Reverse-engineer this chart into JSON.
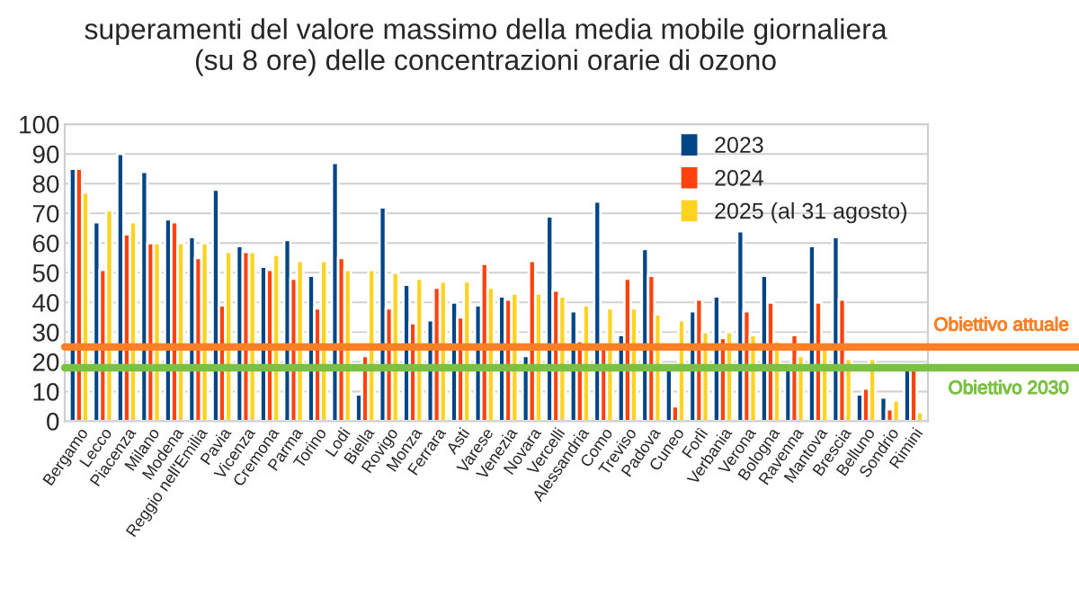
{
  "chart_data": {
    "type": "bar",
    "title": "superamenti del valore massimo della media mobile giornaliera\n(su 8 ore) delle concentrazioni orarie di ozono",
    "categories": [
      "Bergamo",
      "Lecco",
      "Piacenza",
      "Milano",
      "Modena",
      "Reggio nell'Emilia",
      "Pavia",
      "Vicenza",
      "Cremona",
      "Parma",
      "Torino",
      "Lodi",
      "Biella",
      "Rovigo",
      "Monza",
      "Ferrara",
      "Asti",
      "Varese",
      "Venezia",
      "Novara",
      "Vercelli",
      "Alessandria",
      "Como",
      "Treviso",
      "Padova",
      "Cuneo",
      "Forlì",
      "Verbania",
      "Verona",
      "Bologna",
      "Ravenna",
      "Mantova",
      "Brescia",
      "Belluno",
      "Sondrio",
      "Rimini"
    ],
    "series": [
      {
        "name": "2023",
        "color": "#004586",
        "values": [
          85,
          67,
          90,
          84,
          68,
          62,
          78,
          59,
          52,
          61,
          49,
          87,
          9,
          72,
          46,
          34,
          40,
          39,
          42,
          22,
          69,
          37,
          74,
          29,
          58,
          18,
          37,
          42,
          64,
          49,
          18,
          59,
          62,
          9,
          8,
          18
        ]
      },
      {
        "name": "2024",
        "color": "#ff420e",
        "values": [
          85,
          51,
          63,
          60,
          67,
          55,
          39,
          57,
          51,
          48,
          38,
          55,
          22,
          38,
          33,
          45,
          35,
          53,
          41,
          54,
          44,
          27,
          26,
          48,
          49,
          5,
          41,
          28,
          37,
          40,
          29,
          40,
          41,
          11,
          4,
          18
        ]
      },
      {
        "name": "2025 (al 31 agosto)",
        "color": "#ffd320",
        "values": [
          77,
          71,
          67,
          60,
          60,
          60,
          57,
          57,
          56,
          54,
          54,
          51,
          51,
          50,
          48,
          47,
          47,
          45,
          43,
          43,
          42,
          39,
          38,
          38,
          36,
          34,
          30,
          30,
          29,
          27,
          22,
          25,
          21,
          21,
          7,
          3
        ]
      }
    ],
    "ylim": [
      0,
      100
    ],
    "yticks": [
      0,
      10,
      20,
      30,
      40,
      50,
      60,
      70,
      80,
      90,
      100
    ],
    "grid": "y",
    "legend": "top right",
    "ref_lines": [
      {
        "axis": "y",
        "value": 25,
        "label": "Obiettivo attuale",
        "color": "#ff7f27"
      },
      {
        "axis": "y",
        "value": 18,
        "label": "Obiettivo 2030",
        "color": "#7ac143"
      }
    ]
  }
}
